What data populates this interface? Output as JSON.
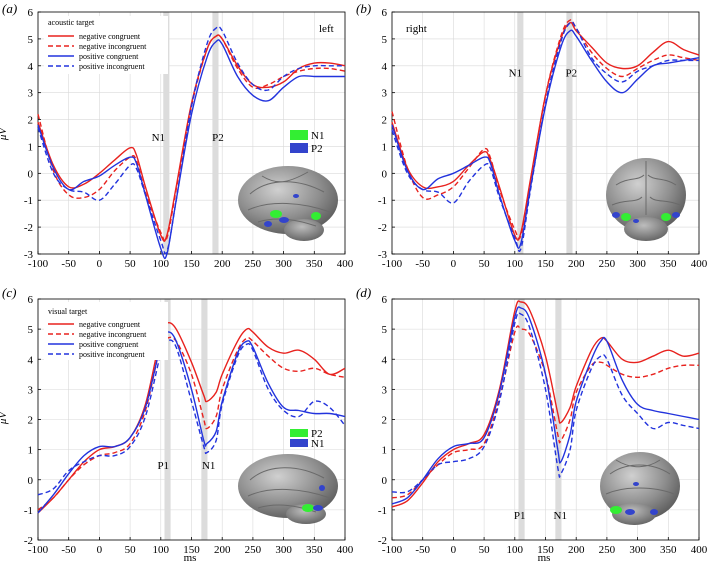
{
  "figure": {
    "xlabel": "ms",
    "ylabel": "μV"
  },
  "chart_data": [
    {
      "type": "line",
      "panel": "(a)",
      "corner_label": "left",
      "legend_title": "acoustic target",
      "xlim": [
        -100,
        400
      ],
      "ylim": [
        -3,
        6
      ],
      "xticks": [
        -100,
        -50,
        0,
        50,
        100,
        150,
        200,
        250,
        300,
        350,
        400
      ],
      "yticks": [
        -3,
        -2,
        -1,
        0,
        1,
        2,
        3,
        4,
        5,
        6
      ],
      "grid": true,
      "shaded_windows": [
        {
          "label": "N1",
          "range": [
            104,
            114
          ]
        },
        {
          "label": "P2",
          "range": [
            184,
            194
          ]
        }
      ],
      "annotations": [
        {
          "text": "N1",
          "x": 96,
          "y": 1.2
        },
        {
          "text": "P2",
          "x": 193,
          "y": 1.2
        }
      ],
      "inset": {
        "type": "brain",
        "legend": [
          {
            "name": "N1",
            "color": "#33ee33"
          },
          {
            "name": "P2",
            "color": "#3344cc"
          }
        ]
      },
      "x": [
        -100,
        -75,
        -50,
        -25,
        0,
        25,
        50,
        60,
        75,
        100,
        110,
        125,
        150,
        175,
        190,
        200,
        225,
        250,
        275,
        300,
        325,
        350,
        375,
        400
      ],
      "series": [
        {
          "name": "negative congruent",
          "color": "#e8221e",
          "dash": "solid",
          "values": [
            1.9,
            0.3,
            -0.5,
            -0.4,
            0.0,
            0.5,
            0.95,
            0.7,
            -0.5,
            -2.3,
            -2.3,
            -0.5,
            2.6,
            4.6,
            5.1,
            5.0,
            4.0,
            3.3,
            3.2,
            3.4,
            3.9,
            4.1,
            4.1,
            4.0
          ]
        },
        {
          "name": "negative incongruent",
          "color": "#e8221e",
          "dash": "dashed",
          "values": [
            2.2,
            0.1,
            -0.8,
            -0.9,
            -0.6,
            0.1,
            0.6,
            0.5,
            -0.7,
            -2.2,
            -2.4,
            -0.6,
            2.5,
            4.6,
            5.1,
            5.0,
            3.9,
            3.2,
            3.3,
            3.6,
            3.8,
            3.9,
            3.9,
            3.8
          ]
        },
        {
          "name": "positive congruent",
          "color": "#2233dd",
          "dash": "solid",
          "values": [
            1.8,
            0.2,
            -0.6,
            -0.3,
            -0.1,
            0.3,
            0.6,
            0.4,
            -0.8,
            -2.8,
            -3.0,
            -1.0,
            2.2,
            4.3,
            4.9,
            4.8,
            3.6,
            2.9,
            2.7,
            3.2,
            3.6,
            3.6,
            3.6,
            3.6
          ]
        },
        {
          "name": "positive incongruent",
          "color": "#2233dd",
          "dash": "dashed",
          "values": [
            1.7,
            0.0,
            -0.6,
            -0.7,
            -1.0,
            -0.4,
            0.3,
            0.2,
            -0.8,
            -2.5,
            -2.9,
            -1.0,
            2.5,
            4.8,
            5.4,
            5.3,
            4.1,
            3.3,
            3.1,
            3.6,
            3.9,
            4.0,
            4.0,
            4.0
          ]
        }
      ]
    },
    {
      "type": "line",
      "panel": "(b)",
      "corner_label": "right",
      "xlim": [
        -100,
        400
      ],
      "ylim": [
        -3,
        6
      ],
      "xticks": [
        -100,
        -50,
        0,
        50,
        100,
        150,
        200,
        250,
        300,
        350,
        400
      ],
      "yticks": [
        -3,
        -2,
        -1,
        0,
        1,
        2,
        3,
        4,
        5,
        6
      ],
      "grid": true,
      "shaded_windows": [
        {
          "label": "N1",
          "range": [
            104,
            114
          ]
        },
        {
          "label": "P2",
          "range": [
            184,
            194
          ]
        }
      ],
      "annotations": [
        {
          "text": "N1",
          "x": 101,
          "y": 3.6
        },
        {
          "text": "P2",
          "x": 192,
          "y": 3.6
        }
      ],
      "inset": {
        "type": "brain"
      },
      "x": [
        -100,
        -75,
        -50,
        -25,
        0,
        25,
        50,
        60,
        75,
        100,
        110,
        125,
        150,
        175,
        190,
        200,
        225,
        250,
        275,
        300,
        325,
        350,
        375,
        400
      ],
      "series": [
        {
          "name": "negative congruent",
          "color": "#e8221e",
          "dash": "solid",
          "values": [
            1.9,
            0.2,
            -0.5,
            -0.5,
            -0.3,
            0.3,
            0.8,
            0.5,
            -0.5,
            -2.3,
            -2.2,
            -0.3,
            2.9,
            5.0,
            5.6,
            5.3,
            4.7,
            4.1,
            3.9,
            4.0,
            4.5,
            4.9,
            4.6,
            4.4
          ]
        },
        {
          "name": "negative incongruent",
          "color": "#e8221e",
          "dash": "dashed",
          "values": [
            2.3,
            0.2,
            -0.9,
            -0.8,
            -0.5,
            0.2,
            0.9,
            0.6,
            -0.6,
            -2.1,
            -2.3,
            -0.4,
            2.9,
            5.1,
            5.7,
            5.4,
            4.5,
            3.9,
            3.6,
            3.9,
            4.2,
            4.4,
            4.3,
            4.2
          ]
        },
        {
          "name": "positive congruent",
          "color": "#2233dd",
          "dash": "solid",
          "values": [
            1.8,
            0.1,
            -0.6,
            -0.2,
            0.0,
            0.3,
            0.6,
            0.4,
            -0.8,
            -2.5,
            -2.6,
            -0.6,
            2.5,
            4.7,
            5.3,
            5.1,
            4.2,
            3.4,
            3.0,
            3.5,
            4.0,
            4.1,
            4.2,
            4.3
          ]
        },
        {
          "name": "positive incongruent",
          "color": "#2233dd",
          "dash": "dashed",
          "values": [
            1.6,
            0.0,
            -0.6,
            -0.7,
            -1.1,
            -0.3,
            0.3,
            0.2,
            -0.9,
            -2.4,
            -2.8,
            -0.7,
            2.6,
            4.9,
            5.6,
            5.4,
            4.3,
            3.7,
            3.4,
            3.8,
            4.0,
            4.2,
            4.2,
            4.2
          ]
        }
      ]
    },
    {
      "type": "line",
      "panel": "(c)",
      "legend_title": "visual target",
      "xlim": [
        -100,
        400
      ],
      "ylim": [
        -2,
        6
      ],
      "xticks": [
        -100,
        -50,
        0,
        50,
        100,
        150,
        200,
        250,
        300,
        350,
        400
      ],
      "yticks": [
        -2,
        -1,
        0,
        1,
        2,
        3,
        4,
        5,
        6
      ],
      "grid": true,
      "shaded_windows": [
        {
          "label": "P1",
          "range": [
            106,
            116
          ]
        },
        {
          "label": "N1",
          "range": [
            166,
            176
          ]
        }
      ],
      "annotations": [
        {
          "text": "P1",
          "x": 104,
          "y": 0.35
        },
        {
          "text": "N1",
          "x": 178,
          "y": 0.35
        }
      ],
      "inset": {
        "type": "brain",
        "legend": [
          {
            "name": "P2",
            "color": "#33ee33"
          },
          {
            "name": "N1",
            "color": "#3344cc"
          }
        ]
      },
      "x": [
        -100,
        -75,
        -50,
        -25,
        0,
        25,
        50,
        75,
        100,
        110,
        125,
        150,
        170,
        175,
        190,
        200,
        225,
        240,
        250,
        275,
        300,
        325,
        350,
        375,
        400
      ],
      "series": [
        {
          "name": "negative congruent",
          "color": "#e8221e",
          "dash": "solid",
          "values": [
            -1.1,
            -0.6,
            0.0,
            0.6,
            1.0,
            1.1,
            1.4,
            2.5,
            4.8,
            5.2,
            5.0,
            3.9,
            2.8,
            2.6,
            2.9,
            3.5,
            4.6,
            5.0,
            4.9,
            4.4,
            4.2,
            4.3,
            4.0,
            3.5,
            3.7
          ]
        },
        {
          "name": "negative incongruent",
          "color": "#e8221e",
          "dash": "dashed",
          "values": [
            -1.0,
            -0.6,
            0.0,
            0.5,
            0.8,
            0.9,
            1.2,
            2.3,
            4.5,
            4.7,
            4.6,
            3.5,
            2.0,
            1.7,
            2.1,
            3.0,
            4.3,
            4.7,
            4.6,
            4.1,
            3.7,
            3.6,
            3.7,
            3.5,
            3.4
          ]
        },
        {
          "name": "positive congruent",
          "color": "#2233dd",
          "dash": "solid",
          "values": [
            -1.1,
            -0.5,
            0.2,
            0.8,
            1.1,
            1.1,
            1.4,
            2.4,
            4.5,
            4.9,
            4.6,
            3.0,
            1.3,
            1.2,
            1.6,
            2.6,
            4.2,
            4.6,
            4.4,
            3.2,
            2.4,
            2.3,
            2.2,
            2.2,
            2.1
          ]
        },
        {
          "name": "positive incongruent",
          "color": "#2233dd",
          "dash": "dashed",
          "values": [
            -0.5,
            -0.3,
            0.3,
            0.6,
            0.8,
            0.8,
            1.1,
            2.1,
            4.2,
            4.6,
            4.4,
            2.6,
            1.1,
            0.9,
            1.3,
            2.5,
            4.1,
            4.5,
            4.3,
            3.0,
            2.3,
            2.1,
            2.6,
            2.4,
            1.8
          ]
        }
      ]
    },
    {
      "type": "line",
      "panel": "(d)",
      "xlim": [
        -100,
        400
      ],
      "ylim": [
        -2,
        6
      ],
      "xticks": [
        -100,
        -50,
        0,
        50,
        100,
        150,
        200,
        250,
        300,
        350,
        400
      ],
      "yticks": [
        -2,
        -1,
        0,
        1,
        2,
        3,
        4,
        5,
        6
      ],
      "grid": true,
      "shaded_windows": [
        {
          "label": "P1",
          "range": [
            106,
            116
          ]
        },
        {
          "label": "N1",
          "range": [
            166,
            176
          ]
        }
      ],
      "annotations": [
        {
          "text": "P1",
          "x": 108,
          "y": -1.3
        },
        {
          "text": "N1",
          "x": 174,
          "y": -1.3
        }
      ],
      "inset": {
        "type": "brain"
      },
      "x": [
        -100,
        -75,
        -50,
        -25,
        0,
        25,
        50,
        75,
        100,
        110,
        125,
        150,
        170,
        175,
        190,
        200,
        225,
        240,
        250,
        275,
        300,
        325,
        350,
        375,
        400
      ],
      "series": [
        {
          "name": "negative congruent",
          "color": "#e8221e",
          "dash": "solid",
          "values": [
            -0.9,
            -0.7,
            -0.1,
            0.6,
            1.0,
            1.2,
            1.5,
            3.0,
            5.6,
            5.9,
            5.6,
            4.1,
            2.2,
            1.9,
            2.4,
            3.1,
            4.3,
            4.7,
            4.6,
            4.0,
            3.9,
            4.1,
            4.3,
            4.1,
            4.2
          ]
        },
        {
          "name": "negative incongruent",
          "color": "#e8221e",
          "dash": "dashed",
          "values": [
            -0.6,
            -0.5,
            0.0,
            0.5,
            0.9,
            1.0,
            1.2,
            2.7,
            4.9,
            5.0,
            4.8,
            3.5,
            1.5,
            1.3,
            2.0,
            2.9,
            3.8,
            3.9,
            3.8,
            3.5,
            3.4,
            3.5,
            3.7,
            3.8,
            3.8
          ]
        },
        {
          "name": "positive congruent",
          "color": "#2233dd",
          "dash": "solid",
          "values": [
            -0.8,
            -0.6,
            0.0,
            0.7,
            1.1,
            1.2,
            1.4,
            2.9,
            5.4,
            5.7,
            5.3,
            3.5,
            1.0,
            0.6,
            1.5,
            2.6,
            4.0,
            4.6,
            4.6,
            3.3,
            2.5,
            2.3,
            2.2,
            2.1,
            2.0
          ]
        },
        {
          "name": "positive incongruent",
          "color": "#2233dd",
          "dash": "dashed",
          "values": [
            -0.4,
            -0.4,
            0.0,
            0.5,
            0.6,
            0.7,
            1.1,
            2.6,
            5.2,
            5.5,
            5.0,
            3.0,
            0.4,
            0.2,
            1.0,
            2.3,
            3.7,
            4.1,
            4.0,
            2.8,
            2.2,
            1.7,
            1.9,
            1.8,
            1.7
          ]
        }
      ]
    }
  ]
}
